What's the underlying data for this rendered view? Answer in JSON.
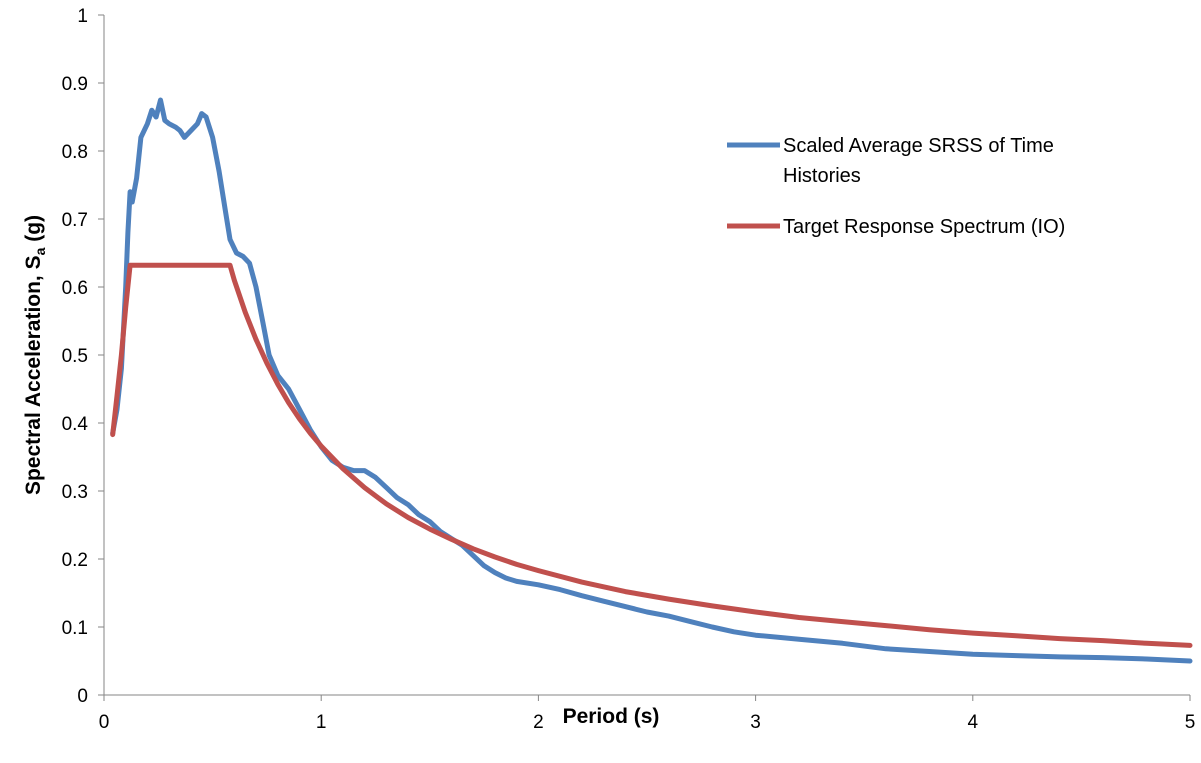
{
  "chart_data": {
    "type": "line",
    "title": "",
    "xlabel": "Period (s)",
    "ylabel": "Spectral Acceleration, S",
    "ylabel_subscript": "a",
    "ylabel_suffix": " (g)",
    "xlim": [
      0,
      5
    ],
    "ylim": [
      0,
      1
    ],
    "xticks": [
      "0",
      "1",
      "2",
      "3",
      "4",
      "5"
    ],
    "yticks": [
      "0",
      "0.1",
      "0.2",
      "0.3",
      "0.4",
      "0.5",
      "0.6",
      "0.7",
      "0.8",
      "0.9",
      "1"
    ],
    "grid": false,
    "legend_position": "top-right",
    "series": [
      {
        "name": "Scaled Average SRSS of Time Histories",
        "color": "#4F81BD",
        "points": [
          [
            0.04,
            0.385
          ],
          [
            0.06,
            0.42
          ],
          [
            0.08,
            0.48
          ],
          [
            0.1,
            0.6
          ],
          [
            0.11,
            0.68
          ],
          [
            0.12,
            0.74
          ],
          [
            0.13,
            0.725
          ],
          [
            0.15,
            0.76
          ],
          [
            0.17,
            0.82
          ],
          [
            0.2,
            0.84
          ],
          [
            0.22,
            0.86
          ],
          [
            0.24,
            0.85
          ],
          [
            0.26,
            0.875
          ],
          [
            0.28,
            0.845
          ],
          [
            0.3,
            0.84
          ],
          [
            0.33,
            0.835
          ],
          [
            0.35,
            0.83
          ],
          [
            0.37,
            0.82
          ],
          [
            0.4,
            0.83
          ],
          [
            0.43,
            0.84
          ],
          [
            0.45,
            0.855
          ],
          [
            0.47,
            0.85
          ],
          [
            0.5,
            0.82
          ],
          [
            0.53,
            0.77
          ],
          [
            0.56,
            0.71
          ],
          [
            0.58,
            0.67
          ],
          [
            0.61,
            0.65
          ],
          [
            0.64,
            0.645
          ],
          [
            0.67,
            0.635
          ],
          [
            0.7,
            0.6
          ],
          [
            0.73,
            0.55
          ],
          [
            0.76,
            0.5
          ],
          [
            0.8,
            0.47
          ],
          [
            0.85,
            0.45
          ],
          [
            0.9,
            0.42
          ],
          [
            0.95,
            0.39
          ],
          [
            1.0,
            0.365
          ],
          [
            1.05,
            0.345
          ],
          [
            1.1,
            0.335
          ],
          [
            1.15,
            0.33
          ],
          [
            1.2,
            0.33
          ],
          [
            1.25,
            0.32
          ],
          [
            1.3,
            0.305
          ],
          [
            1.35,
            0.29
          ],
          [
            1.4,
            0.28
          ],
          [
            1.45,
            0.265
          ],
          [
            1.5,
            0.255
          ],
          [
            1.55,
            0.24
          ],
          [
            1.6,
            0.23
          ],
          [
            1.65,
            0.22
          ],
          [
            1.7,
            0.205
          ],
          [
            1.75,
            0.19
          ],
          [
            1.8,
            0.18
          ],
          [
            1.85,
            0.172
          ],
          [
            1.9,
            0.167
          ],
          [
            2.0,
            0.162
          ],
          [
            2.1,
            0.155
          ],
          [
            2.2,
            0.146
          ],
          [
            2.3,
            0.138
          ],
          [
            2.4,
            0.13
          ],
          [
            2.5,
            0.122
          ],
          [
            2.6,
            0.116
          ],
          [
            2.7,
            0.108
          ],
          [
            2.8,
            0.1
          ],
          [
            2.9,
            0.093
          ],
          [
            3.0,
            0.088
          ],
          [
            3.2,
            0.082
          ],
          [
            3.4,
            0.076
          ],
          [
            3.6,
            0.068
          ],
          [
            3.8,
            0.064
          ],
          [
            4.0,
            0.06
          ],
          [
            4.2,
            0.058
          ],
          [
            4.4,
            0.056
          ],
          [
            4.6,
            0.055
          ],
          [
            4.8,
            0.053
          ],
          [
            5.0,
            0.05
          ]
        ]
      },
      {
        "name": "Target Response Spectrum (IO)",
        "color": "#C0504D",
        "points": [
          [
            0.04,
            0.383
          ],
          [
            0.06,
            0.44
          ],
          [
            0.08,
            0.5
          ],
          [
            0.1,
            0.57
          ],
          [
            0.12,
            0.632
          ],
          [
            0.2,
            0.632
          ],
          [
            0.3,
            0.632
          ],
          [
            0.4,
            0.632
          ],
          [
            0.5,
            0.632
          ],
          [
            0.58,
            0.632
          ],
          [
            0.6,
            0.61
          ],
          [
            0.65,
            0.563
          ],
          [
            0.7,
            0.523
          ],
          [
            0.75,
            0.488
          ],
          [
            0.8,
            0.457
          ],
          [
            0.85,
            0.43
          ],
          [
            0.9,
            0.406
          ],
          [
            0.95,
            0.385
          ],
          [
            1.0,
            0.366
          ],
          [
            1.1,
            0.333
          ],
          [
            1.2,
            0.305
          ],
          [
            1.3,
            0.281
          ],
          [
            1.4,
            0.261
          ],
          [
            1.5,
            0.244
          ],
          [
            1.6,
            0.229
          ],
          [
            1.7,
            0.215
          ],
          [
            1.8,
            0.203
          ],
          [
            1.9,
            0.192
          ],
          [
            2.0,
            0.183
          ],
          [
            2.2,
            0.166
          ],
          [
            2.4,
            0.152
          ],
          [
            2.6,
            0.141
          ],
          [
            2.8,
            0.131
          ],
          [
            3.0,
            0.122
          ],
          [
            3.2,
            0.114
          ],
          [
            3.4,
            0.108
          ],
          [
            3.6,
            0.102
          ],
          [
            3.8,
            0.096
          ],
          [
            4.0,
            0.091
          ],
          [
            4.2,
            0.087
          ],
          [
            4.4,
            0.083
          ],
          [
            4.6,
            0.08
          ],
          [
            4.8,
            0.076
          ],
          [
            5.0,
            0.073
          ]
        ]
      }
    ]
  }
}
